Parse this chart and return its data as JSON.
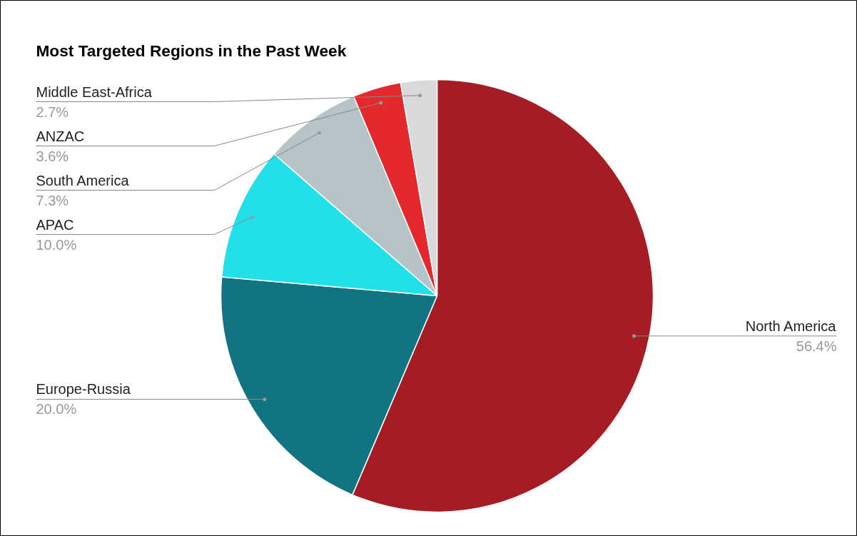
{
  "chart_data": {
    "type": "pie",
    "title": "Most Targeted Regions in the Past Week",
    "categories": [
      "North America",
      "Europe-Russia",
      "APAC",
      "South America",
      "ANZAC",
      "Middle East-Africa"
    ],
    "values": [
      56.4,
      20.0,
      10.0,
      7.3,
      3.6,
      2.7
    ],
    "colors": [
      "#a51c24",
      "#127482",
      "#22e0ea",
      "#b6c4c8",
      "#e3292d",
      "#d9d9d9"
    ],
    "value_labels": [
      "56.4%",
      "20.0%",
      "10.0%",
      "7.3%",
      "3.6%",
      "2.7%"
    ]
  }
}
